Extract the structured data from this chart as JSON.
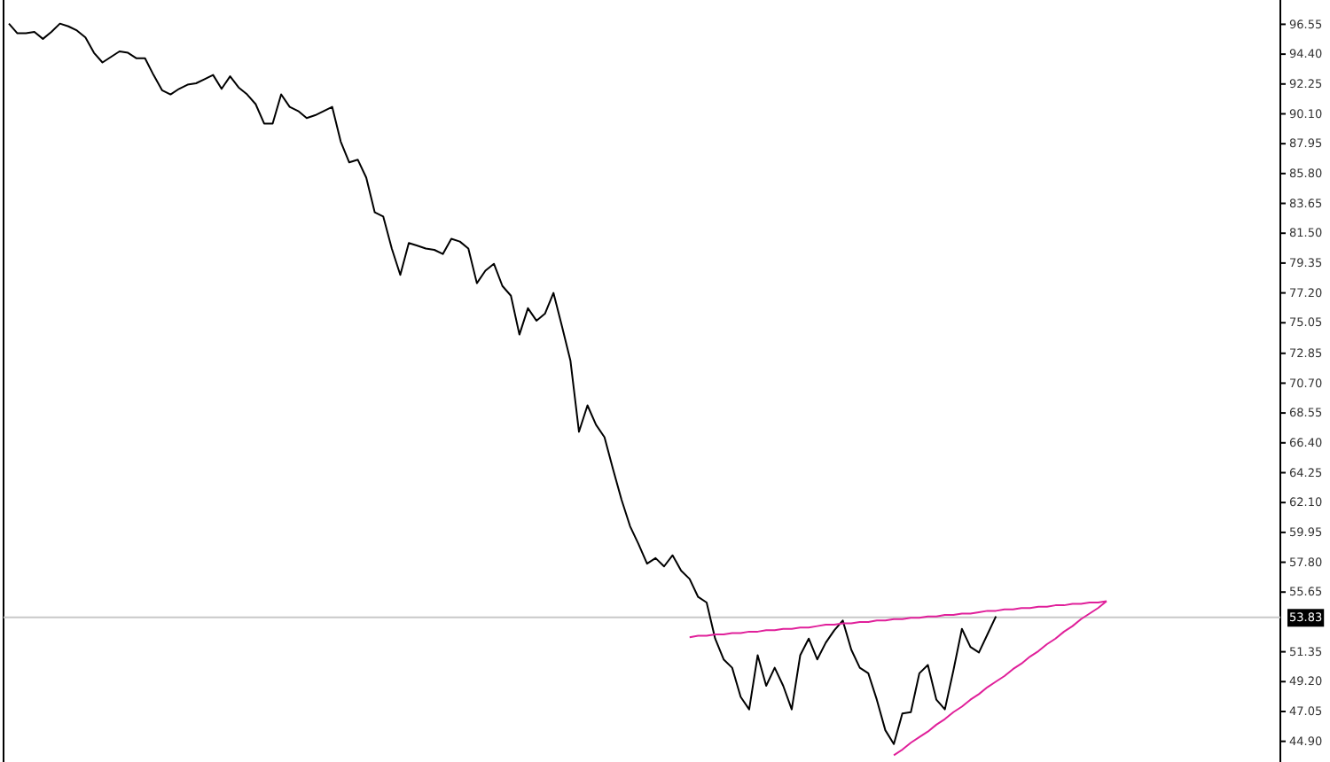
{
  "chart_data": {
    "type": "line",
    "categories": [
      null,
      null,
      null,
      null,
      null,
      null,
      null,
      null,
      null,
      null,
      null,
      null,
      null,
      null,
      null,
      null,
      null,
      null,
      null,
      null,
      null,
      null,
      null,
      null,
      null,
      null,
      null,
      null,
      null,
      null,
      null,
      null,
      null,
      null,
      null,
      null,
      null,
      null,
      null,
      null,
      null,
      null,
      null,
      null,
      null,
      null,
      null,
      null,
      null,
      null,
      null,
      null,
      null,
      null,
      null,
      null,
      null,
      null,
      null,
      null,
      null,
      null,
      null,
      null,
      null,
      null,
      null,
      null,
      null,
      null,
      null,
      null,
      null,
      null,
      null,
      null,
      null,
      null,
      null,
      null,
      null,
      null,
      null,
      null,
      null,
      null,
      null,
      null,
      null,
      null,
      null,
      null,
      null,
      null,
      null,
      null,
      null,
      null,
      null,
      null,
      null,
      null,
      null,
      null,
      null,
      null,
      null,
      null,
      null,
      null,
      null,
      null,
      null,
      null,
      null,
      null,
      null,
      null,
      null,
      null,
      null,
      null,
      null,
      null,
      null,
      null,
      null,
      null,
      null,
      null
    ],
    "series": [
      {
        "color": "#000000",
        "values": [
          96.6,
          95.9,
          95.9,
          96.0,
          95.5,
          96.0,
          96.6,
          96.4,
          96.1,
          95.6,
          94.5,
          93.8,
          94.2,
          94.6,
          94.5,
          94.1,
          94.1,
          92.9,
          91.8,
          91.5,
          91.9,
          92.2,
          92.3,
          92.6,
          92.9,
          91.9,
          92.8,
          92.0,
          91.5,
          90.8,
          89.4,
          89.4,
          91.5,
          90.6,
          90.3,
          89.8,
          90.0,
          90.3,
          90.6,
          88.1,
          86.6,
          86.8,
          85.5,
          83.0,
          82.7,
          80.4,
          78.5,
          80.8,
          80.6,
          80.4,
          80.3,
          80.0,
          81.1,
          80.9,
          80.4,
          77.9,
          78.8,
          79.3,
          77.7,
          77.0,
          74.2,
          76.1,
          75.2,
          75.7,
          77.2,
          74.8,
          72.3,
          67.2,
          69.1,
          67.7,
          66.8,
          64.5,
          62.3,
          60.4,
          59.1,
          57.7,
          58.1,
          57.5,
          58.3,
          57.2,
          56.6,
          55.3,
          54.9,
          52.3,
          50.8,
          50.2,
          48.1,
          47.2,
          51.1,
          48.9,
          50.2,
          48.9,
          47.2,
          51.1,
          52.3,
          50.8,
          52.0,
          52.9,
          53.6,
          51.5,
          50.2,
          49.8,
          47.9,
          45.7,
          44.7,
          46.9,
          47.0,
          49.8,
          50.4,
          47.9,
          47.2,
          50.0,
          53.0,
          51.7,
          51.3,
          52.6,
          53.9,
          null,
          null,
          null,
          null,
          null,
          null,
          null,
          null,
          null,
          null,
          null,
          null,
          null
        ]
      },
      {
        "color": "#e0209a",
        "values": [
          null,
          null,
          null,
          null,
          null,
          null,
          null,
          null,
          null,
          null,
          null,
          null,
          null,
          null,
          null,
          null,
          null,
          null,
          null,
          null,
          null,
          null,
          null,
          null,
          null,
          null,
          null,
          null,
          null,
          null,
          null,
          null,
          null,
          null,
          null,
          null,
          null,
          null,
          null,
          null,
          null,
          null,
          null,
          null,
          null,
          null,
          null,
          null,
          null,
          null,
          null,
          null,
          null,
          null,
          null,
          null,
          null,
          null,
          null,
          null,
          null,
          null,
          null,
          null,
          null,
          null,
          null,
          null,
          null,
          null,
          null,
          null,
          null,
          null,
          null,
          null,
          null,
          null,
          null,
          null,
          52.4,
          52.5,
          52.5,
          52.6,
          52.6,
          52.7,
          52.7,
          52.8,
          52.8,
          52.9,
          52.9,
          53.0,
          53.0,
          53.1,
          53.1,
          53.2,
          53.3,
          53.3,
          53.4,
          53.4,
          53.5,
          53.5,
          53.6,
          53.6,
          53.7,
          53.7,
          53.8,
          53.8,
          53.9,
          53.9,
          54.0,
          54.0,
          54.1,
          54.1,
          54.2,
          54.3,
          54.3,
          54.4,
          54.4,
          54.5,
          54.5,
          54.6,
          54.6,
          54.7,
          54.7,
          54.8,
          54.8,
          54.9,
          54.9,
          55.0
        ]
      },
      {
        "color": "#e0209a",
        "values": [
          null,
          null,
          null,
          null,
          null,
          null,
          null,
          null,
          null,
          null,
          null,
          null,
          null,
          null,
          null,
          null,
          null,
          null,
          null,
          null,
          null,
          null,
          null,
          null,
          null,
          null,
          null,
          null,
          null,
          null,
          null,
          null,
          null,
          null,
          null,
          null,
          null,
          null,
          null,
          null,
          null,
          null,
          null,
          null,
          null,
          null,
          null,
          null,
          null,
          null,
          null,
          null,
          null,
          null,
          null,
          null,
          null,
          null,
          null,
          null,
          null,
          null,
          null,
          null,
          null,
          null,
          null,
          null,
          null,
          null,
          null,
          null,
          null,
          null,
          null,
          null,
          null,
          null,
          null,
          null,
          null,
          null,
          null,
          null,
          null,
          null,
          null,
          null,
          null,
          null,
          null,
          null,
          null,
          null,
          null,
          null,
          null,
          null,
          null,
          null,
          null,
          null,
          null,
          null,
          43.9,
          44.3,
          44.8,
          45.2,
          45.6,
          46.1,
          46.5,
          47.0,
          47.4,
          47.9,
          48.3,
          48.8,
          49.2,
          49.6,
          50.1,
          50.5,
          51.0,
          51.4,
          51.9,
          52.3,
          52.8,
          53.2,
          53.7,
          54.1,
          54.5,
          55.0
        ]
      }
    ],
    "ylim": [
      43.41,
      98.3
    ],
    "yticks": [
      {
        "value": 96.55,
        "label": "96.55"
      },
      {
        "value": 94.4,
        "label": "94.40"
      },
      {
        "value": 92.25,
        "label": "92.25"
      },
      {
        "value": 90.1,
        "label": "90.10"
      },
      {
        "value": 87.95,
        "label": "87.95"
      },
      {
        "value": 85.8,
        "label": "85.80"
      },
      {
        "value": 83.65,
        "label": "83.65"
      },
      {
        "value": 81.5,
        "label": "81.50"
      },
      {
        "value": 79.35,
        "label": "79.35"
      },
      {
        "value": 77.2,
        "label": "77.20"
      },
      {
        "value": 75.05,
        "label": "75.05"
      },
      {
        "value": 72.85,
        "label": "72.85"
      },
      {
        "value": 70.7,
        "label": "70.70"
      },
      {
        "value": 68.55,
        "label": "68.55"
      },
      {
        "value": 66.4,
        "label": "66.40"
      },
      {
        "value": 64.25,
        "label": "64.25"
      },
      {
        "value": 62.1,
        "label": "62.10"
      },
      {
        "value": 59.95,
        "label": "59.95"
      },
      {
        "value": 57.8,
        "label": "57.80"
      },
      {
        "value": 55.65,
        "label": "55.65"
      },
      {
        "value": 51.35,
        "label": "51.35"
      },
      {
        "value": 49.2,
        "label": "49.20"
      },
      {
        "value": 47.05,
        "label": "47.05"
      },
      {
        "value": 44.9,
        "label": "44.90"
      }
    ],
    "ref_lines": [
      {
        "axis": "y",
        "value": 53.83,
        "label": "53.83",
        "color": "#c8c8c8"
      }
    ],
    "grid": false,
    "marker": "none",
    "line_style": "solid"
  }
}
